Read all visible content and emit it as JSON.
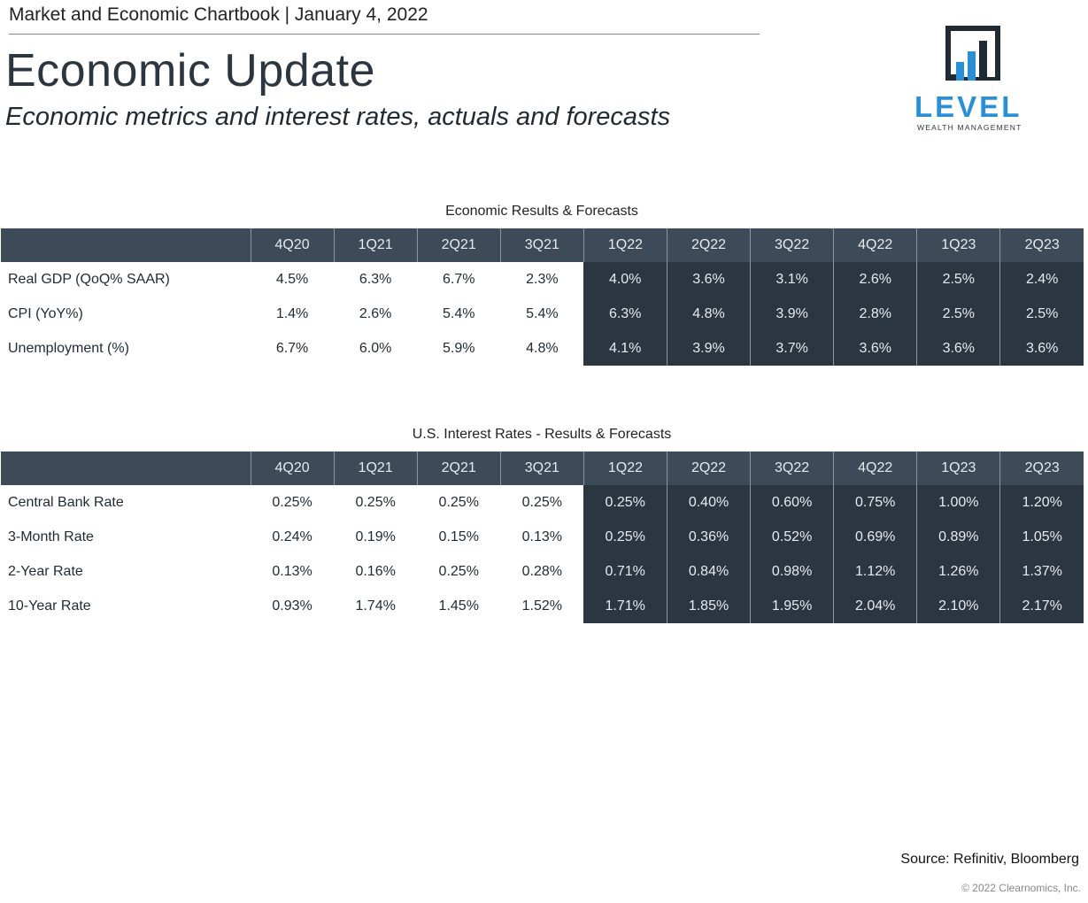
{
  "header": {
    "chartbook": "Market and Economic Chartbook | January 4, 2022",
    "title": "Economic Update",
    "subtitle": "Economic metrics and interest rates, actuals and forecasts"
  },
  "logo": {
    "word": "LEVEL",
    "sub": "WEALTH MANAGEMENT"
  },
  "colors": {
    "header_bg": "#3d4a57",
    "forecast_bg": "#2b3640",
    "logo_blue": "#2b8fd6"
  },
  "chart_data": [
    {
      "type": "table",
      "title": "Economic Results & Forecasts",
      "columns": [
        "4Q20",
        "1Q21",
        "2Q21",
        "3Q21",
        "1Q22",
        "2Q22",
        "3Q22",
        "4Q22",
        "1Q23",
        "2Q23"
      ],
      "rows": [
        {
          "label": "Real GDP (QoQ% SAAR)",
          "values": [
            "4.5%",
            "6.3%",
            "6.7%",
            "2.3%",
            "4.0%",
            "3.6%",
            "3.1%",
            "2.6%",
            "2.5%",
            "2.4%"
          ]
        },
        {
          "label": "CPI (YoY%)",
          "values": [
            "1.4%",
            "2.6%",
            "5.4%",
            "5.4%",
            "6.3%",
            "4.8%",
            "3.9%",
            "2.8%",
            "2.5%",
            "2.5%"
          ]
        },
        {
          "label": "Unemployment (%)",
          "values": [
            "6.7%",
            "6.0%",
            "5.9%",
            "4.8%",
            "4.1%",
            "3.9%",
            "3.7%",
            "3.6%",
            "3.6%",
            "3.6%"
          ]
        }
      ]
    },
    {
      "type": "table",
      "title": "U.S. Interest Rates - Results & Forecasts",
      "columns": [
        "4Q20",
        "1Q21",
        "2Q21",
        "3Q21",
        "1Q22",
        "2Q22",
        "3Q22",
        "4Q22",
        "1Q23",
        "2Q23"
      ],
      "rows": [
        {
          "label": "Central Bank Rate",
          "values": [
            "0.25%",
            "0.25%",
            "0.25%",
            "0.25%",
            "0.25%",
            "0.40%",
            "0.60%",
            "0.75%",
            "1.00%",
            "1.20%"
          ]
        },
        {
          "label": "3-Month Rate",
          "values": [
            "0.24%",
            "0.19%",
            "0.15%",
            "0.13%",
            "0.25%",
            "0.36%",
            "0.52%",
            "0.69%",
            "0.89%",
            "1.05%"
          ]
        },
        {
          "label": "2-Year Rate",
          "values": [
            "0.13%",
            "0.16%",
            "0.25%",
            "0.28%",
            "0.71%",
            "0.84%",
            "0.98%",
            "1.12%",
            "1.26%",
            "1.37%"
          ]
        },
        {
          "label": "10-Year Rate",
          "values": [
            "0.93%",
            "1.74%",
            "1.45%",
            "1.52%",
            "1.71%",
            "1.85%",
            "1.95%",
            "2.04%",
            "2.10%",
            "2.17%"
          ]
        }
      ]
    }
  ],
  "footer": {
    "source": "Source: Refinitiv, Bloomberg",
    "copyright": "© 2022 Clearnomics, Inc."
  }
}
